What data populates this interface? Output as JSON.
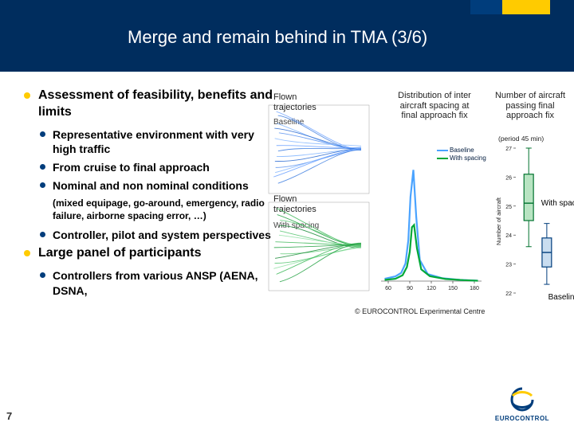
{
  "slide": {
    "title": "Merge and remain behind in TMA (3/6)",
    "page_number": "7",
    "credit": "© EUROCONTROL Experimental Centre",
    "logo_text": "EUROCONTROL"
  },
  "bullets": {
    "b1a": "Assessment of feasibility, benefits and limits",
    "b2a": "Representative environment with very high traffic",
    "b2b": "From cruise to final approach",
    "b2c": "Nominal and non nominal conditions",
    "b2c_note": "(mixed equipage, go-around, emergency, radio failure, airborne spacing error, …)",
    "b2d": "Controller, pilot and system perspectives",
    "b1b": "Large panel of participants",
    "b2e": "Controllers from various ANSP (AENA, DSNA,"
  },
  "figlabels": {
    "flown1": "Flown trajectories",
    "flown1_sub": "Baseline",
    "flown2": "Flown trajectories",
    "flown2_sub": "With spacing",
    "dist": "Distribution of inter aircraft spacing at final approach fix",
    "num": "Number of aircraft passing final approach fix",
    "period": "(period 45 min)",
    "series_baseline": "Baseline",
    "series_withspacing": "With spacing",
    "withspacing_side": "With spacing",
    "baseline_bottom": "Baseline"
  },
  "dist_chart": {
    "type": "line",
    "x_ticks": [
      "60",
      "90",
      "120",
      "150",
      "180"
    ],
    "x_range": [
      50,
      190
    ],
    "y_range": [
      0,
      1
    ],
    "background": "#ffffff",
    "series": [
      {
        "name": "Baseline",
        "color": "#4aa3ff",
        "width": 2.2,
        "points": [
          [
            55,
            0.02
          ],
          [
            70,
            0.04
          ],
          [
            78,
            0.07
          ],
          [
            84,
            0.15
          ],
          [
            88,
            0.35
          ],
          [
            91,
            0.72
          ],
          [
            95,
            0.95
          ],
          [
            99,
            0.55
          ],
          [
            104,
            0.18
          ],
          [
            115,
            0.06
          ],
          [
            135,
            0.025
          ],
          [
            160,
            0.01
          ],
          [
            185,
            0.004
          ]
        ]
      },
      {
        "name": "With spacing",
        "color": "#00a838",
        "width": 2.2,
        "points": [
          [
            55,
            0.01
          ],
          [
            70,
            0.02
          ],
          [
            80,
            0.05
          ],
          [
            86,
            0.12
          ],
          [
            90,
            0.25
          ],
          [
            93,
            0.46
          ],
          [
            96,
            0.48
          ],
          [
            100,
            0.28
          ],
          [
            106,
            0.1
          ],
          [
            118,
            0.042
          ],
          [
            140,
            0.018
          ],
          [
            165,
            0.008
          ],
          [
            185,
            0.003
          ]
        ]
      }
    ]
  },
  "box_chart": {
    "type": "boxplot",
    "y_axis": {
      "min": 22,
      "max": 27,
      "ticks": [
        22,
        23,
        24,
        25,
        26,
        27
      ]
    },
    "y_label": "Number of aircraft",
    "label_fontsize": 8,
    "background": "#ffffff",
    "boxes": [
      {
        "name": "With spacing",
        "x": 0.3,
        "color": "#00722e",
        "fill": "#b8e4c2",
        "min": 23.6,
        "q1": 24.5,
        "median": 25.1,
        "q3": 26.1,
        "max": 27.0
      },
      {
        "name": "Baseline",
        "x": 0.72,
        "color": "#003d7c",
        "fill": "#c9ddf0",
        "min": 22.3,
        "q1": 22.9,
        "median": 23.4,
        "q3": 23.9,
        "max": 24.4
      }
    ],
    "box_width": 0.22
  },
  "traj": {
    "type": "line",
    "frame_color": "#888888",
    "background": "#ffffff",
    "baseline_colors": [
      "#6aa0ff",
      "#3f7fe0",
      "#7fb4ff",
      "#2c6bd1",
      "#5a93f0",
      "#8abaff"
    ],
    "spacing_colors": [
      "#3fb85a",
      "#20a040",
      "#6fd084",
      "#188a36",
      "#55c470",
      "#90e0a4"
    ]
  },
  "colors": {
    "header_bg": "#002d5e",
    "header_accent_l": "#003d7c",
    "header_accent_r": "#ffcb00",
    "bullet_l1": "#ffcb00",
    "bullet_l2": "#003d7c"
  }
}
